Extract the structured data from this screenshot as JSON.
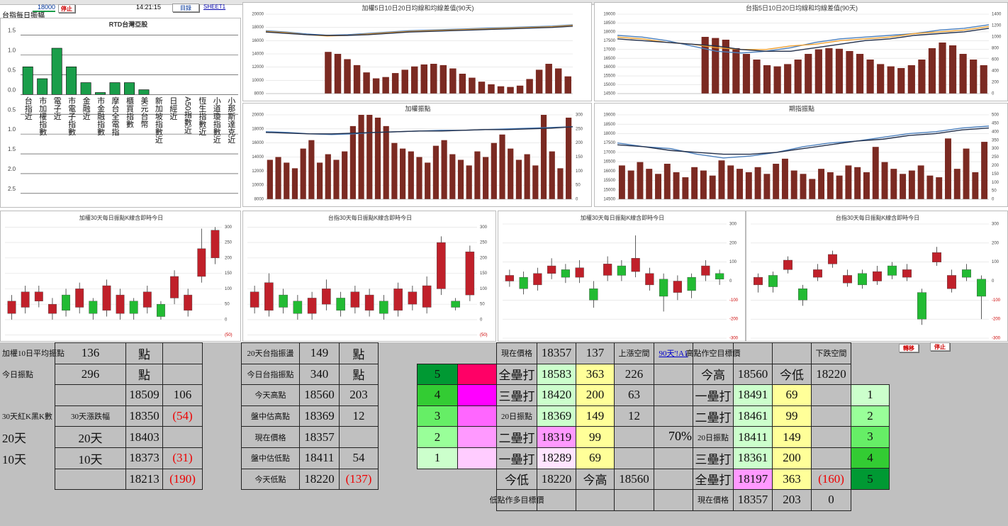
{
  "header": {
    "cell_value": "18000",
    "stop_button": "停止",
    "time": "14:21:15",
    "menu_button": "目錄",
    "sheet_link": "SHEET1",
    "sheet_title": "台指每日振幅"
  },
  "charts": [
    {
      "type": "bar",
      "title": "RTD台灣亞股",
      "color": "#1a9e4a",
      "ylim": [
        -2.7,
        1.6
      ],
      "yticks": [
        1.5,
        {
          "value": 1,
          "label": "1.0"
        },
        0.5,
        {
          "value": 0,
          "label": "0.0"
        },
        {
          "value": -0.5,
          "label": "0.5"
        },
        {
          "value": -1,
          "label": "1.0"
        },
        {
          "value": -1.5,
          "label": "1.5"
        },
        {
          "value": -2,
          "label": "2.0"
        },
        {
          "value": -2.5,
          "label": "2.5"
        }
      ],
      "categories": [
        "台指近",
        "市加權指數",
        "電子近",
        "市電子指數",
        "金融近",
        "市金融指數",
        "摩台全電指",
        "櫃買指數",
        "美元台幣",
        "新加坡指數近",
        "日經近",
        "A50指數近",
        "恆生指數近",
        "小道瓊指數近",
        "小那斯達克近"
      ],
      "values": [
        0.7,
        0.4,
        1.17,
        0.7,
        0.3,
        0.05,
        0.3,
        0.3,
        0.12,
        0,
        0,
        0,
        0,
        0,
        0
      ]
    },
    {
      "type": "barline",
      "title": "加權5日10日20日均線和均線差值(90天)",
      "ylim": [
        8000,
        20000
      ],
      "yticks": [
        8000,
        10000,
        12000,
        14000,
        16000,
        18000,
        20000
      ],
      "bars": {
        "axis": "y",
        "color": "#7b2a22",
        "values": [
          null,
          null,
          null,
          null,
          null,
          null,
          14300,
          14000,
          13200,
          12300,
          11200,
          10300,
          10500,
          11100,
          11600,
          12100,
          12400,
          12500,
          12300,
          11800,
          11000,
          10400,
          9800,
          9400,
          9100,
          9000,
          9200,
          10200,
          11600,
          12500,
          11800,
          10600
        ]
      },
      "lines": [
        {
          "color": "#4a7ebb",
          "values": [
            17500,
            17300,
            17000,
            16800,
            16900,
            17100,
            17300,
            17500,
            17600,
            17700,
            17800,
            17900,
            18000,
            18100,
            18200,
            18400
          ]
        },
        {
          "color": "#f0a030",
          "values": [
            17400,
            17200,
            16900,
            16700,
            16800,
            17000,
            17200,
            17400,
            17500,
            17600,
            17700,
            17800,
            17900,
            18000,
            18100,
            18300
          ]
        },
        {
          "color": "#222f4a",
          "values": [
            17300,
            17100,
            16900,
            16800,
            16800,
            16900,
            17100,
            17300,
            17400,
            17500,
            17600,
            17700,
            17800,
            17900,
            18000,
            18200
          ]
        }
      ]
    },
    {
      "type": "barline",
      "title": "台指5日10日20日均線和均線差值(90天)",
      "ylim": [
        14500,
        19000
      ],
      "yticks": [
        14500,
        15000,
        15500,
        16000,
        16500,
        17000,
        17500,
        18000,
        18500,
        19000
      ],
      "y2lim": [
        0,
        1400
      ],
      "y2ticks": [
        0,
        200,
        400,
        600,
        800,
        1000,
        1200,
        1400
      ],
      "bars": {
        "axis": "y2",
        "color": "#7b2a22",
        "values": [
          null,
          null,
          null,
          null,
          null,
          null,
          null,
          null,
          1000,
          980,
          950,
          800,
          700,
          600,
          500,
          480,
          520,
          600,
          700,
          780,
          800,
          790,
          750,
          700,
          600,
          520,
          480,
          450,
          500,
          600,
          800,
          900,
          850,
          700,
          600,
          500
        ]
      },
      "lines": [
        {
          "color": "#4a7ebb",
          "values": [
            17800,
            17700,
            17500,
            17200,
            16900,
            16800,
            16900,
            17100,
            17400,
            17600,
            17700,
            17800,
            17900,
            18100,
            18200,
            18400
          ]
        },
        {
          "color": "#f0a030",
          "values": [
            17700,
            17600,
            17400,
            17300,
            17100,
            17000,
            17000,
            17200,
            17300,
            17500,
            17600,
            17700,
            17900,
            18000,
            18100,
            18300
          ]
        },
        {
          "color": "#222f4a",
          "values": [
            17600,
            17500,
            17400,
            17300,
            17200,
            17000,
            16900,
            16900,
            17100,
            17300,
            17500,
            17600,
            17800,
            17900,
            18000,
            18200
          ]
        }
      ]
    },
    {
      "type": "barline",
      "title": "加權振點",
      "ylim": [
        8000,
        20000
      ],
      "yticks": [
        8000,
        10000,
        12000,
        14000,
        16000,
        18000,
        20000
      ],
      "y2lim": [
        0,
        300
      ],
      "y2ticks": [
        0,
        50,
        100,
        150,
        200,
        250,
        300
      ],
      "bars": {
        "axis": "y2",
        "color": "#7b2a22",
        "values": [
          140,
          150,
          130,
          110,
          180,
          210,
          130,
          160,
          140,
          170,
          260,
          300,
          300,
          290,
          260,
          200,
          180,
          170,
          150,
          130,
          190,
          210,
          160,
          140,
          120,
          170,
          150,
          200,
          230,
          180,
          140,
          160,
          120,
          300,
          170,
          110,
          290
        ]
      },
      "lines": [
        {
          "color": "#4a7ebb",
          "values": [
            17600,
            17500,
            17300,
            17200,
            17300,
            17500,
            17600,
            17700,
            17800,
            17800,
            17900,
            18000,
            18100,
            18200,
            18300
          ]
        },
        {
          "color": "#222f4a",
          "values": [
            17500,
            17400,
            17300,
            17300,
            17400,
            17500,
            17600,
            17700,
            17700,
            17800,
            17900,
            17900,
            18000,
            18100,
            18300
          ]
        }
      ]
    },
    {
      "type": "barline",
      "title": "期指振點",
      "ylim": [
        14500,
        19000
      ],
      "yticks": [
        14500,
        15000,
        15500,
        16000,
        16500,
        17000,
        17500,
        18000,
        18500,
        19000
      ],
      "y2lim": [
        0,
        500
      ],
      "y2ticks": [
        0,
        50,
        100,
        150,
        200,
        250,
        300,
        350,
        400,
        450,
        500
      ],
      "bars": {
        "axis": "y2",
        "color": "#7b2a22",
        "values": [
          200,
          170,
          220,
          180,
          150,
          210,
          160,
          130,
          190,
          170,
          140,
          230,
          200,
          180,
          160,
          190,
          150,
          210,
          240,
          170,
          150,
          120,
          180,
          160,
          140,
          200,
          190,
          160,
          310,
          220,
          180,
          150,
          170,
          200,
          140,
          130,
          360,
          180,
          300,
          160,
          340
        ]
      },
      "lines": [
        {
          "color": "#4a7ebb",
          "values": [
            17500,
            17300,
            17200,
            16900,
            16700,
            16800,
            17000,
            17300,
            17500,
            17600,
            17800,
            18000,
            18100,
            18300,
            18400
          ]
        },
        {
          "color": "#222f4a",
          "values": [
            17400,
            17300,
            17100,
            17000,
            16900,
            16900,
            17000,
            17200,
            17400,
            17600,
            17700,
            17900,
            18000,
            18200,
            18300
          ]
        }
      ]
    },
    {
      "type": "candlestick",
      "title": "加權30天每日振點K線含即時今日",
      "ylim": [
        -60,
        310
      ],
      "yticks": [
        {
          "value": -50,
          "label": "(50)"
        },
        0,
        50,
        100,
        150,
        200,
        250,
        300
      ],
      "open": [
        20,
        40,
        60,
        20,
        80,
        40,
        60,
        30,
        20,
        60,
        40,
        50,
        70,
        30,
        140,
        200
      ],
      "close": [
        60,
        90,
        90,
        50,
        30,
        100,
        20,
        110,
        80,
        20,
        90,
        10,
        140,
        80,
        230,
        290
      ],
      "high": [
        80,
        110,
        110,
        70,
        100,
        120,
        70,
        130,
        100,
        70,
        110,
        60,
        160,
        100,
        295,
        300
      ],
      "low": [
        0,
        20,
        40,
        0,
        10,
        20,
        0,
        10,
        0,
        0,
        20,
        0,
        50,
        10,
        120,
        180
      ]
    },
    {
      "type": "candlestick",
      "title": "台指30天每日振點K線含即時今日",
      "ylim": [
        -60,
        310
      ],
      "yticks": [
        {
          "value": -50,
          "label": "(50)"
        },
        0,
        50,
        100,
        150,
        200,
        250,
        300
      ],
      "open": [
        40,
        30,
        80,
        60,
        20,
        50,
        70,
        40,
        30,
        60,
        30,
        50,
        40,
        100,
        60,
        80
      ],
      "close": [
        90,
        120,
        40,
        20,
        70,
        100,
        30,
        90,
        80,
        20,
        100,
        90,
        110,
        250,
        40,
        220
      ],
      "high": [
        110,
        150,
        100,
        80,
        90,
        130,
        90,
        110,
        100,
        80,
        120,
        110,
        140,
        270,
        70,
        240
      ],
      "low": [
        20,
        10,
        20,
        0,
        0,
        30,
        10,
        20,
        10,
        0,
        10,
        30,
        20,
        80,
        30,
        60
      ]
    },
    {
      "type": "candlestick",
      "title": "加權30天每日振點K線含即時今日",
      "ylim": [
        -300,
        300
      ],
      "yticks": [
        -300,
        -200,
        -100,
        0,
        100,
        200,
        300
      ],
      "open": [
        0,
        20,
        -20,
        40,
        60,
        20,
        -40,
        30,
        80,
        50,
        -20,
        10,
        -60,
        20,
        30,
        40
      ],
      "close": [
        30,
        -40,
        40,
        80,
        20,
        70,
        -100,
        90,
        30,
        120,
        40,
        -80,
        0,
        -50,
        80,
        10
      ],
      "high": [
        60,
        50,
        70,
        120,
        90,
        110,
        0,
        130,
        110,
        240,
        70,
        40,
        30,
        40,
        110,
        60
      ],
      "low": [
        -30,
        -70,
        -50,
        10,
        -10,
        -10,
        -140,
        0,
        0,
        20,
        -50,
        -160,
        -100,
        -90,
        0,
        -20
      ]
    },
    {
      "type": "candlestick",
      "title": "台指30天每日振點K線含即時今日",
      "ylim": [
        -300,
        300
      ],
      "yticks": [
        -300,
        -200,
        -100,
        0,
        100,
        200,
        300
      ],
      "open": [
        -20,
        30,
        60,
        -40,
        20,
        90,
        -10,
        40,
        0,
        80,
        20,
        -60,
        100,
        -40,
        60,
        10
      ],
      "close": [
        20,
        -30,
        110,
        -100,
        60,
        140,
        30,
        -20,
        50,
        30,
        60,
        -200,
        150,
        30,
        20,
        -80
      ],
      "high": [
        40,
        50,
        130,
        -20,
        90,
        160,
        60,
        60,
        80,
        100,
        90,
        -40,
        180,
        60,
        90,
        30
      ],
      "low": [
        -60,
        -60,
        40,
        -130,
        0,
        70,
        -30,
        -40,
        -20,
        10,
        0,
        -230,
        80,
        -60,
        0,
        -200
      ]
    }
  ],
  "tables": [
    {
      "rows": [
        [
          "加權10日平均振點",
          "136",
          "點",
          null
        ],
        [
          "今日振點",
          "296",
          "點",
          null
        ],
        [
          null,
          null,
          "18509",
          "106"
        ],
        [
          "30天紅K黑K數",
          "30天漲跌幅",
          "18350",
          "(54)"
        ],
        [
          "20天",
          "20天",
          "18403",
          null
        ],
        [
          "10天",
          "10天",
          "18373",
          "(31)"
        ],
        [
          null,
          null,
          "18213",
          "(190)"
        ]
      ]
    },
    {
      "rows": [
        [
          "20天台指振盪",
          "149",
          "點"
        ],
        [
          "今日台指振點",
          "340",
          "點"
        ],
        [
          "今天高點",
          "18560",
          "203"
        ],
        [
          "盤中估高點",
          "18369",
          "12"
        ],
        [
          "現在價格",
          "18357",
          null
        ],
        [
          "盤中估低點",
          "18411",
          "54"
        ],
        [
          "今天低點",
          "18220",
          "(137)"
        ]
      ]
    },
    {
      "rows": [
        [
          "5",
          null
        ],
        [
          "4",
          null
        ],
        [
          "3",
          null
        ],
        [
          "2",
          null
        ],
        [
          "1",
          null
        ]
      ]
    },
    {
      "rows": [
        [
          "現在價格",
          "18357",
          "137",
          "上漲空間",
          "90天'!A1"
        ],
        [
          "全壘打",
          "18583",
          "363",
          "226",
          null
        ],
        [
          "三壘打",
          "18420",
          "200",
          "63",
          null
        ],
        [
          "20日振點",
          "18369",
          "149",
          "12",
          null
        ],
        [
          "二壘打",
          "18319",
          "99",
          null,
          null
        ],
        [
          "一壘打",
          "18289",
          "69",
          null,
          null
        ],
        [
          "今低",
          "18220",
          "今高",
          "18560",
          null
        ],
        [
          "低點作多目標價",
          null,
          null,
          null,
          null
        ]
      ]
    },
    {
      "rows": [
        [
          "高點作空目標價",
          null,
          null,
          "下跌空間"
        ],
        [
          "今高",
          "18560",
          "今低",
          "18220"
        ],
        [
          "一壘打",
          "18491",
          "69",
          null
        ],
        [
          "二壘打",
          "18461",
          "99",
          null
        ],
        [
          "20日振點",
          "18411",
          "149",
          null
        ],
        [
          "三壘打",
          "18361",
          "200",
          null
        ],
        [
          "全壘打",
          "18197",
          "363",
          "(160)"
        ],
        [
          "現在價格",
          "18357",
          "203",
          "0"
        ]
      ]
    },
    {
      "rows": [
        [
          "1"
        ],
        [
          "2"
        ],
        [
          "3"
        ],
        [
          "4"
        ],
        [
          "5"
        ]
      ]
    }
  ],
  "percent": "70%",
  "buttons": {
    "transfer": "轉移",
    "stop": "停止"
  }
}
